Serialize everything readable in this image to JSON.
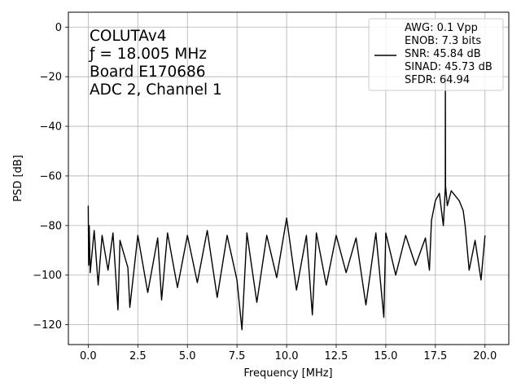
{
  "chart_data": {
    "type": "line",
    "title": "",
    "xlabel": "Frequency [MHz]",
    "ylabel": "PSD [dB]",
    "xlim": [
      -1,
      21.2
    ],
    "ylim": [
      -128,
      6
    ],
    "xticks": [
      0.0,
      2.5,
      5.0,
      7.5,
      10.0,
      12.5,
      15.0,
      17.5,
      20.0
    ],
    "xtick_labels": [
      "0.0",
      "2.5",
      "5.0",
      "7.5",
      "10.0",
      "12.5",
      "15.0",
      "17.5",
      "20.0"
    ],
    "yticks": [
      0,
      -20,
      -40,
      -60,
      -80,
      -100,
      -120
    ],
    "ytick_labels": [
      "0",
      "−20",
      "−40",
      "−60",
      "−80",
      "−100",
      "−120"
    ],
    "grid": true,
    "legend_position": "top-right",
    "line_color": "#000000",
    "annotation_lines": [
      "COLUTAv4",
      "ƒ = 18.005 MHz",
      "Board E170686",
      "ADC 2, Channel 1"
    ],
    "annotation_position": "top-left",
    "legend_lines": [
      "AWG: 0.1 Vpp",
      "ENOB: 7.3 bits",
      "SNR: 45.84 dB",
      "SINAD: 45.73 dB",
      "SFDR: 64.94"
    ],
    "series": [
      {
        "x": [
          0.0,
          0.02,
          0.05,
          0.1,
          0.3,
          0.5,
          0.7,
          1.0,
          1.25,
          1.5,
          1.6,
          2.0,
          2.1,
          2.5,
          3.0,
          3.5,
          3.7,
          4.0,
          4.5,
          5.0,
          5.5,
          6.0,
          6.5,
          7.0,
          7.5,
          7.75,
          8.0,
          8.5,
          9.0,
          9.5,
          10.0,
          10.5,
          11.0,
          11.3,
          11.5,
          12.0,
          12.5,
          13.0,
          13.5,
          14.0,
          14.5,
          14.9,
          15.0,
          15.5,
          16.0,
          16.5,
          17.0,
          17.2,
          17.3,
          17.5,
          17.7,
          17.9,
          18.0,
          18.005,
          18.01,
          18.1,
          18.3,
          18.5,
          18.7,
          18.9,
          19.0,
          19.2,
          19.5,
          19.8,
          20.0
        ],
        "y": [
          -72,
          -96,
          -80,
          -99,
          -82,
          -104,
          -84,
          -98,
          -83,
          -114,
          -86,
          -97,
          -113,
          -84,
          -107,
          -85,
          -110,
          -83,
          -105,
          -84,
          -103,
          -82,
          -109,
          -84,
          -102,
          -122,
          -83,
          -111,
          -84,
          -101,
          -77,
          -106,
          -84,
          -116,
          -83,
          -104,
          -84,
          -99,
          -85,
          -112,
          -83,
          -117,
          -83,
          -100,
          -84,
          -96,
          -85,
          -98,
          -78,
          -70,
          -67,
          -80,
          -65,
          -19,
          -64,
          -72,
          -66,
          -68,
          -70,
          -74,
          -80,
          -98,
          -86,
          -102,
          -84
        ]
      }
    ]
  }
}
